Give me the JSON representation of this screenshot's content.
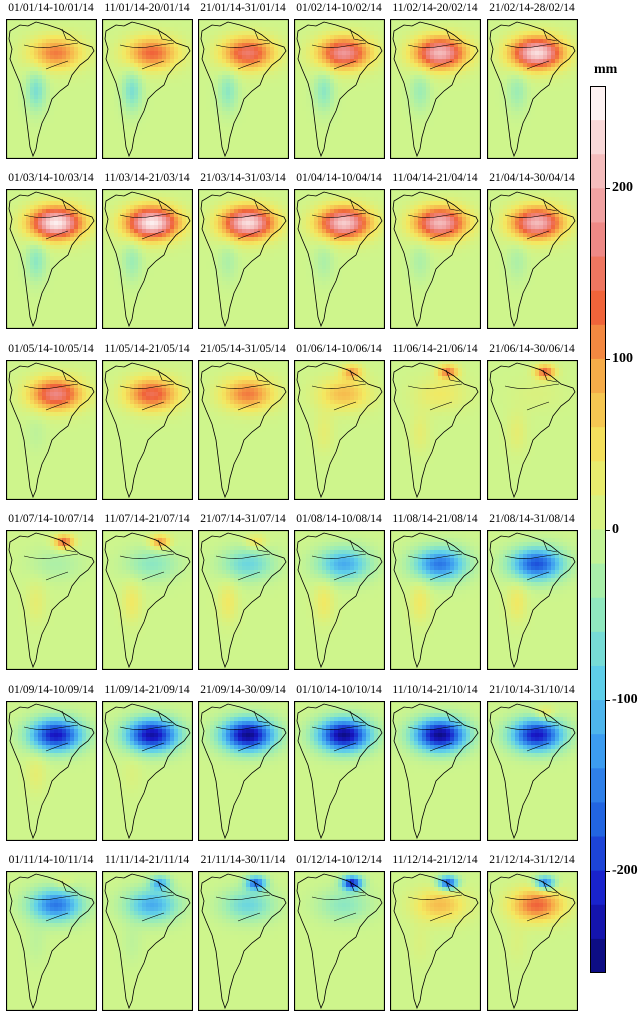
{
  "panels": [
    {
      "label": "01/01/14-10/01/14",
      "pattern": {
        "amazon": 0.45,
        "south": -0.25,
        "north": 0.0
      }
    },
    {
      "label": "11/01/14-20/01/14",
      "pattern": {
        "amazon": 0.5,
        "south": -0.25,
        "north": 0.0
      }
    },
    {
      "label": "21/01/14-31/01/14",
      "pattern": {
        "amazon": 0.6,
        "south": -0.2,
        "north": 0.0
      }
    },
    {
      "label": "01/02/14-10/02/14",
      "pattern": {
        "amazon": 0.7,
        "south": -0.2,
        "north": 0.0
      }
    },
    {
      "label": "11/02/14-20/02/14",
      "pattern": {
        "amazon": 0.8,
        "south": -0.15,
        "north": 0.0
      }
    },
    {
      "label": "21/02/14-28/02/14",
      "pattern": {
        "amazon": 0.9,
        "south": -0.15,
        "north": 0.0
      }
    },
    {
      "label": "01/03/14-10/03/14",
      "pattern": {
        "amazon": 0.95,
        "south": -0.2,
        "north": 0.0
      }
    },
    {
      "label": "11/03/14-21/03/14",
      "pattern": {
        "amazon": 0.95,
        "south": -0.15,
        "north": 0.0
      }
    },
    {
      "label": "21/03/14-31/03/14",
      "pattern": {
        "amazon": 0.9,
        "south": -0.1,
        "north": 0.0
      }
    },
    {
      "label": "01/04/14-10/04/14",
      "pattern": {
        "amazon": 0.85,
        "south": -0.1,
        "north": 0.0
      }
    },
    {
      "label": "11/04/14-21/04/14",
      "pattern": {
        "amazon": 0.8,
        "south": -0.1,
        "north": 0.0
      }
    },
    {
      "label": "21/04/14-30/04/14",
      "pattern": {
        "amazon": 0.8,
        "south": -0.1,
        "north": 0.0
      }
    },
    {
      "label": "01/05/14-10/05/14",
      "pattern": {
        "amazon": 0.65,
        "south": -0.05,
        "north": 0.0
      }
    },
    {
      "label": "11/05/14-21/05/14",
      "pattern": {
        "amazon": 0.55,
        "south": 0.0,
        "north": 0.0
      }
    },
    {
      "label": "21/05/14-31/05/14",
      "pattern": {
        "amazon": 0.45,
        "south": 0.0,
        "north": 0.0
      }
    },
    {
      "label": "01/06/14-10/06/14",
      "pattern": {
        "amazon": 0.3,
        "south": 0.1,
        "north": 0.35
      }
    },
    {
      "label": "11/06/14-21/06/14",
      "pattern": {
        "amazon": 0.15,
        "south": 0.1,
        "north": 0.45
      }
    },
    {
      "label": "21/06/14-30/06/14",
      "pattern": {
        "amazon": 0.05,
        "south": 0.1,
        "north": 0.5
      }
    },
    {
      "label": "01/07/14-10/07/14",
      "pattern": {
        "amazon": -0.1,
        "south": 0.1,
        "north": 0.5
      }
    },
    {
      "label": "11/07/14-21/07/14",
      "pattern": {
        "amazon": -0.2,
        "south": 0.15,
        "north": 0.4
      }
    },
    {
      "label": "21/07/14-31/07/14",
      "pattern": {
        "amazon": -0.3,
        "south": 0.15,
        "north": 0.2
      }
    },
    {
      "label": "01/08/14-10/08/14",
      "pattern": {
        "amazon": -0.45,
        "south": 0.15,
        "north": 0.0
      }
    },
    {
      "label": "11/08/14-21/08/14",
      "pattern": {
        "amazon": -0.6,
        "south": 0.15,
        "north": 0.0
      }
    },
    {
      "label": "21/08/14-31/08/14",
      "pattern": {
        "amazon": -0.7,
        "south": 0.15,
        "north": 0.0
      }
    },
    {
      "label": "01/09/14-10/09/14",
      "pattern": {
        "amazon": -0.85,
        "south": 0.1,
        "north": 0.0
      }
    },
    {
      "label": "11/09/14-21/09/14",
      "pattern": {
        "amazon": -0.9,
        "south": 0.05,
        "north": 0.0
      }
    },
    {
      "label": "21/09/14-30/09/14",
      "pattern": {
        "amazon": -0.95,
        "south": 0.0,
        "north": 0.0
      }
    },
    {
      "label": "01/10/14-10/10/14",
      "pattern": {
        "amazon": -0.95,
        "south": 0.0,
        "north": 0.0
      }
    },
    {
      "label": "11/10/14-21/10/14",
      "pattern": {
        "amazon": -0.95,
        "south": 0.0,
        "north": 0.0
      }
    },
    {
      "label": "21/10/14-31/10/14",
      "pattern": {
        "amazon": -0.85,
        "south": 0.0,
        "north": 0.2
      }
    },
    {
      "label": "01/11/14-10/11/14",
      "pattern": {
        "amazon": -0.6,
        "south": -0.05,
        "north": 0.1
      }
    },
    {
      "label": "11/11/14-21/11/14",
      "pattern": {
        "amazon": -0.45,
        "south": -0.05,
        "north": -0.4
      }
    },
    {
      "label": "21/11/14-30/11/14",
      "pattern": {
        "amazon": -0.3,
        "south": 0.0,
        "north": -0.6
      }
    },
    {
      "label": "01/12/14-10/12/14",
      "pattern": {
        "amazon": -0.2,
        "south": 0.0,
        "north": -0.8
      }
    },
    {
      "label": "11/12/14-21/12/14",
      "pattern": {
        "amazon": 0.3,
        "south": 0.05,
        "north": -0.7
      }
    },
    {
      "label": "21/12/14-31/12/14",
      "pattern": {
        "amazon": 0.5,
        "south": 0.05,
        "north": -0.6
      }
    }
  ],
  "colorbar": {
    "unit": "mm",
    "range": [
      -260,
      260
    ],
    "ticks": [
      {
        "value": 200,
        "label": "200"
      },
      {
        "value": 100,
        "label": "100"
      },
      {
        "value": 0,
        "label": "0"
      },
      {
        "value": -100,
        "label": "-100"
      },
      {
        "value": -200,
        "label": "-200"
      }
    ],
    "colors": [
      "#0a0a70",
      "#1818c8",
      "#2060e0",
      "#3c9cf0",
      "#62d2e8",
      "#98ecb8",
      "#cef58c",
      "#f4e860",
      "#f7b24a",
      "#f0643a",
      "#ee8c8c",
      "#f6c6c6",
      "#ffffff"
    ]
  }
}
